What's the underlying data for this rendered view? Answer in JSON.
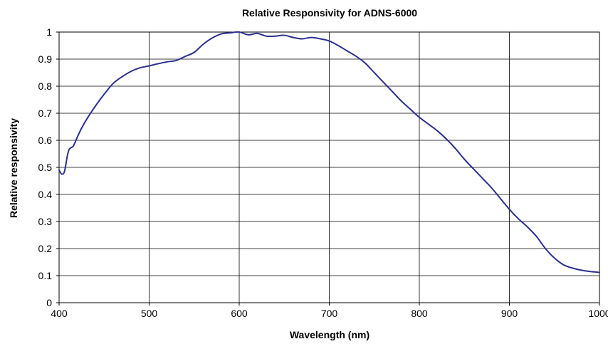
{
  "chart_data": {
    "type": "line",
    "title": "Relative Responsivity for ADNS-6000",
    "xlabel": "Wavelength (nm)",
    "ylabel": "Relative responsivity",
    "xlim": [
      400,
      1000
    ],
    "ylim": [
      0,
      1
    ],
    "x_ticks": [
      400,
      500,
      600,
      700,
      800,
      900,
      1000
    ],
    "y_ticks": [
      0,
      0.1,
      0.2,
      0.3,
      0.4,
      0.5,
      0.6,
      0.7,
      0.8,
      0.9,
      1
    ],
    "y_tick_labels": [
      "0",
      "0.1",
      "0.2",
      "0.3",
      "0.4",
      "0.5",
      "0.6",
      "0.7",
      "0.8",
      "0.9",
      "1"
    ],
    "grid": true,
    "legend": "none",
    "line_color": "#2b2f8f",
    "series": [
      {
        "x": [
          400,
          403,
          406,
          409,
          411,
          413,
          416,
          420,
          425,
          432,
          440,
          450,
          460,
          470,
          480,
          490,
          500,
          510,
          520,
          530,
          540,
          550,
          560,
          570,
          580,
          590,
          600,
          610,
          620,
          630,
          640,
          650,
          660,
          670,
          680,
          690,
          700,
          710,
          720,
          730,
          740,
          750,
          760,
          770,
          780,
          790,
          800,
          810,
          820,
          830,
          840,
          850,
          860,
          870,
          880,
          890,
          900,
          910,
          920,
          930,
          940,
          950,
          960,
          970,
          980,
          990,
          1000
        ],
        "y": [
          0.49,
          0.475,
          0.485,
          0.54,
          0.565,
          0.572,
          0.58,
          0.61,
          0.645,
          0.685,
          0.725,
          0.77,
          0.81,
          0.835,
          0.855,
          0.868,
          0.875,
          0.883,
          0.89,
          0.895,
          0.91,
          0.925,
          0.955,
          0.978,
          0.993,
          0.997,
          1.0,
          0.99,
          0.995,
          0.985,
          0.985,
          0.988,
          0.98,
          0.975,
          0.98,
          0.975,
          0.967,
          0.95,
          0.93,
          0.91,
          0.885,
          0.85,
          0.815,
          0.78,
          0.745,
          0.715,
          0.685,
          0.66,
          0.635,
          0.605,
          0.57,
          0.53,
          0.495,
          0.46,
          0.425,
          0.385,
          0.345,
          0.31,
          0.28,
          0.245,
          0.2,
          0.165,
          0.14,
          0.128,
          0.12,
          0.115,
          0.112
        ]
      }
    ]
  }
}
